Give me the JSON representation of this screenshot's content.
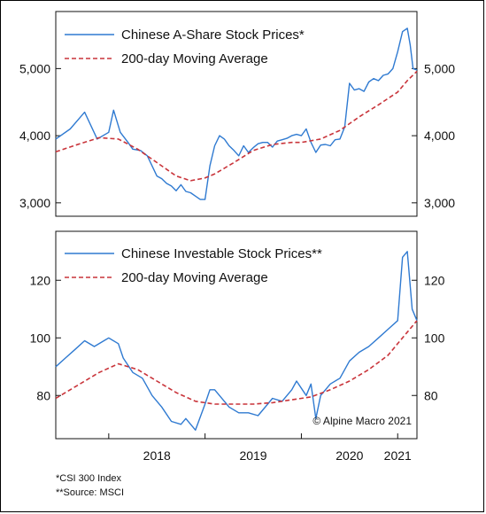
{
  "chart_data": [
    {
      "type": "line",
      "title": "",
      "x_range": [
        2017.45,
        2021.2
      ],
      "ylim": [
        2800,
        5850
      ],
      "y_ticks": [
        3000,
        4000,
        5000
      ],
      "y_tick_labels": [
        "3,000",
        "4,000",
        "5,000"
      ],
      "legend_position": "top-left",
      "grid": false,
      "series": [
        {
          "name": "Chinese A-Share Stock Prices*",
          "style": "solid",
          "color": "#2f7ad1",
          "x": [
            2017.45,
            2017.6,
            2017.75,
            2017.88,
            2018.0,
            2018.05,
            2018.12,
            2018.2,
            2018.25,
            2018.33,
            2018.4,
            2018.45,
            2018.5,
            2018.55,
            2018.6,
            2018.65,
            2018.7,
            2018.75,
            2018.8,
            2018.85,
            2018.9,
            2018.95,
            2019.0,
            2019.05,
            2019.1,
            2019.15,
            2019.2,
            2019.25,
            2019.3,
            2019.35,
            2019.4,
            2019.45,
            2019.5,
            2019.55,
            2019.6,
            2019.65,
            2019.7,
            2019.75,
            2019.8,
            2019.85,
            2019.9,
            2019.95,
            2020.0,
            2020.05,
            2020.1,
            2020.15,
            2020.2,
            2020.25,
            2020.3,
            2020.35,
            2020.4,
            2020.45,
            2020.5,
            2020.55,
            2020.6,
            2020.65,
            2020.7,
            2020.75,
            2020.8,
            2020.85,
            2020.9,
            2020.95,
            2021.0,
            2021.05,
            2021.1,
            2021.13,
            2021.16,
            2021.2
          ],
          "values": [
            3950,
            4100,
            4350,
            3950,
            4050,
            4380,
            4050,
            3900,
            3800,
            3780,
            3700,
            3550,
            3400,
            3360,
            3290,
            3250,
            3180,
            3270,
            3170,
            3150,
            3100,
            3050,
            3050,
            3550,
            3850,
            4000,
            3950,
            3850,
            3780,
            3700,
            3850,
            3750,
            3820,
            3880,
            3900,
            3900,
            3830,
            3920,
            3940,
            3960,
            4000,
            4020,
            4000,
            4100,
            3900,
            3750,
            3860,
            3870,
            3850,
            3940,
            3950,
            4130,
            4780,
            4680,
            4700,
            4660,
            4800,
            4850,
            4820,
            4900,
            4920,
            5000,
            5250,
            5550,
            5600,
            5350,
            5000,
            4980
          ]
        },
        {
          "name": "200-day Moving Average",
          "style": "dashed",
          "color": "#c9343a",
          "x": [
            2017.45,
            2017.7,
            2017.9,
            2018.1,
            2018.3,
            2018.5,
            2018.7,
            2018.85,
            2019.0,
            2019.1,
            2019.3,
            2019.5,
            2019.7,
            2019.9,
            2020.0,
            2020.2,
            2020.4,
            2020.6,
            2020.8,
            2021.0,
            2021.1,
            2021.2
          ],
          "values": [
            3760,
            3880,
            3970,
            3950,
            3800,
            3600,
            3400,
            3330,
            3370,
            3430,
            3600,
            3780,
            3870,
            3900,
            3900,
            3950,
            4080,
            4280,
            4460,
            4650,
            4820,
            4960
          ]
        }
      ]
    },
    {
      "type": "line",
      "title": "",
      "x_range": [
        2017.45,
        2021.2
      ],
      "ylim": [
        65,
        137
      ],
      "y_ticks": [
        80,
        100,
        120
      ],
      "y_tick_labels": [
        "80",
        "100",
        "120"
      ],
      "x_tick_labels": [
        "2018",
        "2019",
        "2020",
        "2021"
      ],
      "legend_position": "top-left",
      "grid": false,
      "annotation": "© Alpine Macro 2021",
      "series": [
        {
          "name": "Chinese Investable Stock Prices**",
          "style": "solid",
          "color": "#2f7ad1",
          "x": [
            2017.45,
            2017.55,
            2017.65,
            2017.75,
            2017.85,
            2017.95,
            2018.0,
            2018.1,
            2018.15,
            2018.25,
            2018.35,
            2018.45,
            2018.55,
            2018.65,
            2018.75,
            2018.8,
            2018.9,
            2019.0,
            2019.05,
            2019.1,
            2019.2,
            2019.25,
            2019.35,
            2019.45,
            2019.55,
            2019.65,
            2019.7,
            2019.8,
            2019.9,
            2019.95,
            2020.05,
            2020.1,
            2020.15,
            2020.2,
            2020.3,
            2020.4,
            2020.5,
            2020.6,
            2020.7,
            2020.8,
            2020.9,
            2021.0,
            2021.05,
            2021.1,
            2021.15,
            2021.2
          ],
          "values": [
            90,
            93,
            96,
            99,
            97,
            99,
            100,
            98,
            93,
            88,
            86,
            80,
            76,
            71,
            70,
            72,
            68,
            77,
            82,
            82,
            78,
            76,
            74,
            74,
            73,
            77,
            79,
            78,
            82,
            85,
            80,
            84,
            72,
            80,
            84,
            86,
            92,
            95,
            97,
            100,
            103,
            106,
            128,
            130,
            110,
            106
          ]
        },
        {
          "name": "200-day Moving Average",
          "style": "dashed",
          "color": "#c9343a",
          "x": [
            2017.45,
            2017.7,
            2017.9,
            2018.1,
            2018.3,
            2018.5,
            2018.7,
            2018.9,
            2019.1,
            2019.3,
            2019.5,
            2019.7,
            2019.9,
            2020.1,
            2020.3,
            2020.5,
            2020.7,
            2020.9,
            2021.0,
            2021.1,
            2021.2
          ],
          "values": [
            79,
            84,
            88,
            91,
            89,
            85,
            81,
            78,
            77,
            77,
            77,
            77.5,
            78.5,
            79.5,
            82,
            85,
            89,
            94,
            98,
            102,
            106
          ]
        }
      ]
    }
  ],
  "footnotes": [
    "*CSI 300 Index",
    "**Source: MSCI"
  ]
}
